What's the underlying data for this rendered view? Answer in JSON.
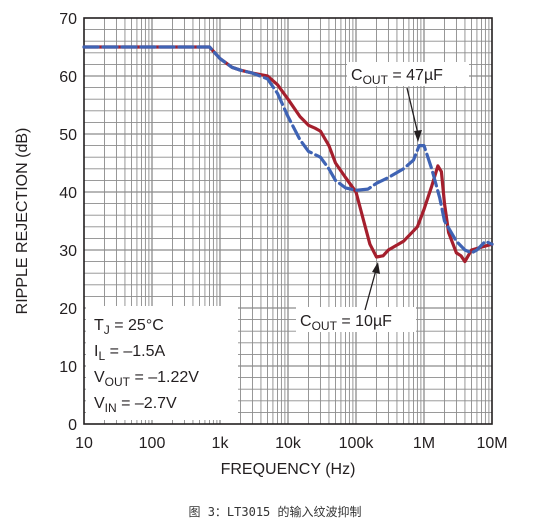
{
  "chart_data": {
    "type": "line",
    "title": "",
    "xlabel": "FREQUENCY (Hz)",
    "ylabel": "RIPPLE REJECTION (dB)",
    "x_scale": "log",
    "xlim": [
      10,
      10000000
    ],
    "ylim": [
      0,
      70
    ],
    "grid": true,
    "x_tick_values": [
      10,
      100,
      1000,
      10000,
      100000,
      1000000,
      10000000
    ],
    "x_tick_labels": [
      "10",
      "100",
      "1k",
      "10k",
      "100k",
      "1M",
      "10M"
    ],
    "y_tick_values": [
      0,
      10,
      20,
      30,
      40,
      50,
      60,
      70
    ],
    "y_tick_labels": [
      "0",
      "10",
      "20",
      "30",
      "40",
      "50",
      "60",
      "70"
    ],
    "colors": {
      "cout_47": "#3f63b4",
      "cout_10": "#a51f2d",
      "grid": "#8c8c8c"
    },
    "series": [
      {
        "name": "COUT = 47µF",
        "style": "dashed",
        "x": [
          10,
          100,
          500,
          700,
          1000,
          1500,
          2000,
          3000,
          5000,
          7000,
          10000,
          15000,
          20000,
          30000,
          40000,
          50000,
          70000,
          100000,
          150000,
          200000,
          300000,
          500000,
          700000,
          850000,
          1000000,
          1300000,
          1700000,
          2000000,
          3000000,
          4000000,
          5000000,
          6000000,
          8000000,
          10000000
        ],
        "y": [
          65,
          65,
          65,
          65,
          63,
          61.5,
          61,
          60.5,
          59.5,
          57,
          53,
          49,
          47,
          46,
          44,
          42,
          40.7,
          40.3,
          40.5,
          41.5,
          42.5,
          44,
          45.5,
          48,
          48,
          44,
          39,
          35,
          31.5,
          30,
          29.5,
          30,
          31.5,
          31
        ]
      },
      {
        "name": "COUT = 10µF",
        "style": "solid",
        "x": [
          10,
          100,
          500,
          700,
          1000,
          1500,
          2000,
          3000,
          5000,
          7000,
          10000,
          15000,
          20000,
          25000,
          30000,
          40000,
          50000,
          70000,
          100000,
          130000,
          160000,
          200000,
          250000,
          300000,
          500000,
          800000,
          1000000,
          1300000,
          1600000,
          1800000,
          2000000,
          2300000,
          3000000,
          3500000,
          4000000,
          5000000,
          7000000,
          10000000
        ],
        "y": [
          65,
          65,
          65,
          65,
          63,
          61.5,
          61,
          60.5,
          60,
          58.5,
          56,
          53,
          51.5,
          51,
          50.5,
          48,
          45,
          42.5,
          40,
          35,
          31,
          28.8,
          29,
          30,
          31.5,
          34,
          37,
          41,
          44.5,
          43.5,
          38,
          33,
          29.5,
          29,
          28,
          30,
          30.5,
          31
        ]
      }
    ],
    "annotations": [
      {
        "main": "C",
        "sub": "OUT",
        "rest": " = 47µF"
      },
      {
        "main": "C",
        "sub": "OUT",
        "rest": " = 10µF"
      }
    ],
    "conditions": [
      {
        "main": "T",
        "sub": "J",
        "rest": " = 25°C"
      },
      {
        "main": "I",
        "sub": "L",
        "rest": " = –1.5A"
      },
      {
        "main": "V",
        "sub": "OUT",
        "rest": " = –1.22V"
      },
      {
        "main": "V",
        "sub": "IN",
        "rest": " = –2.7V"
      }
    ]
  },
  "caption": "图 3：LT3015 的输入纹波抑制"
}
